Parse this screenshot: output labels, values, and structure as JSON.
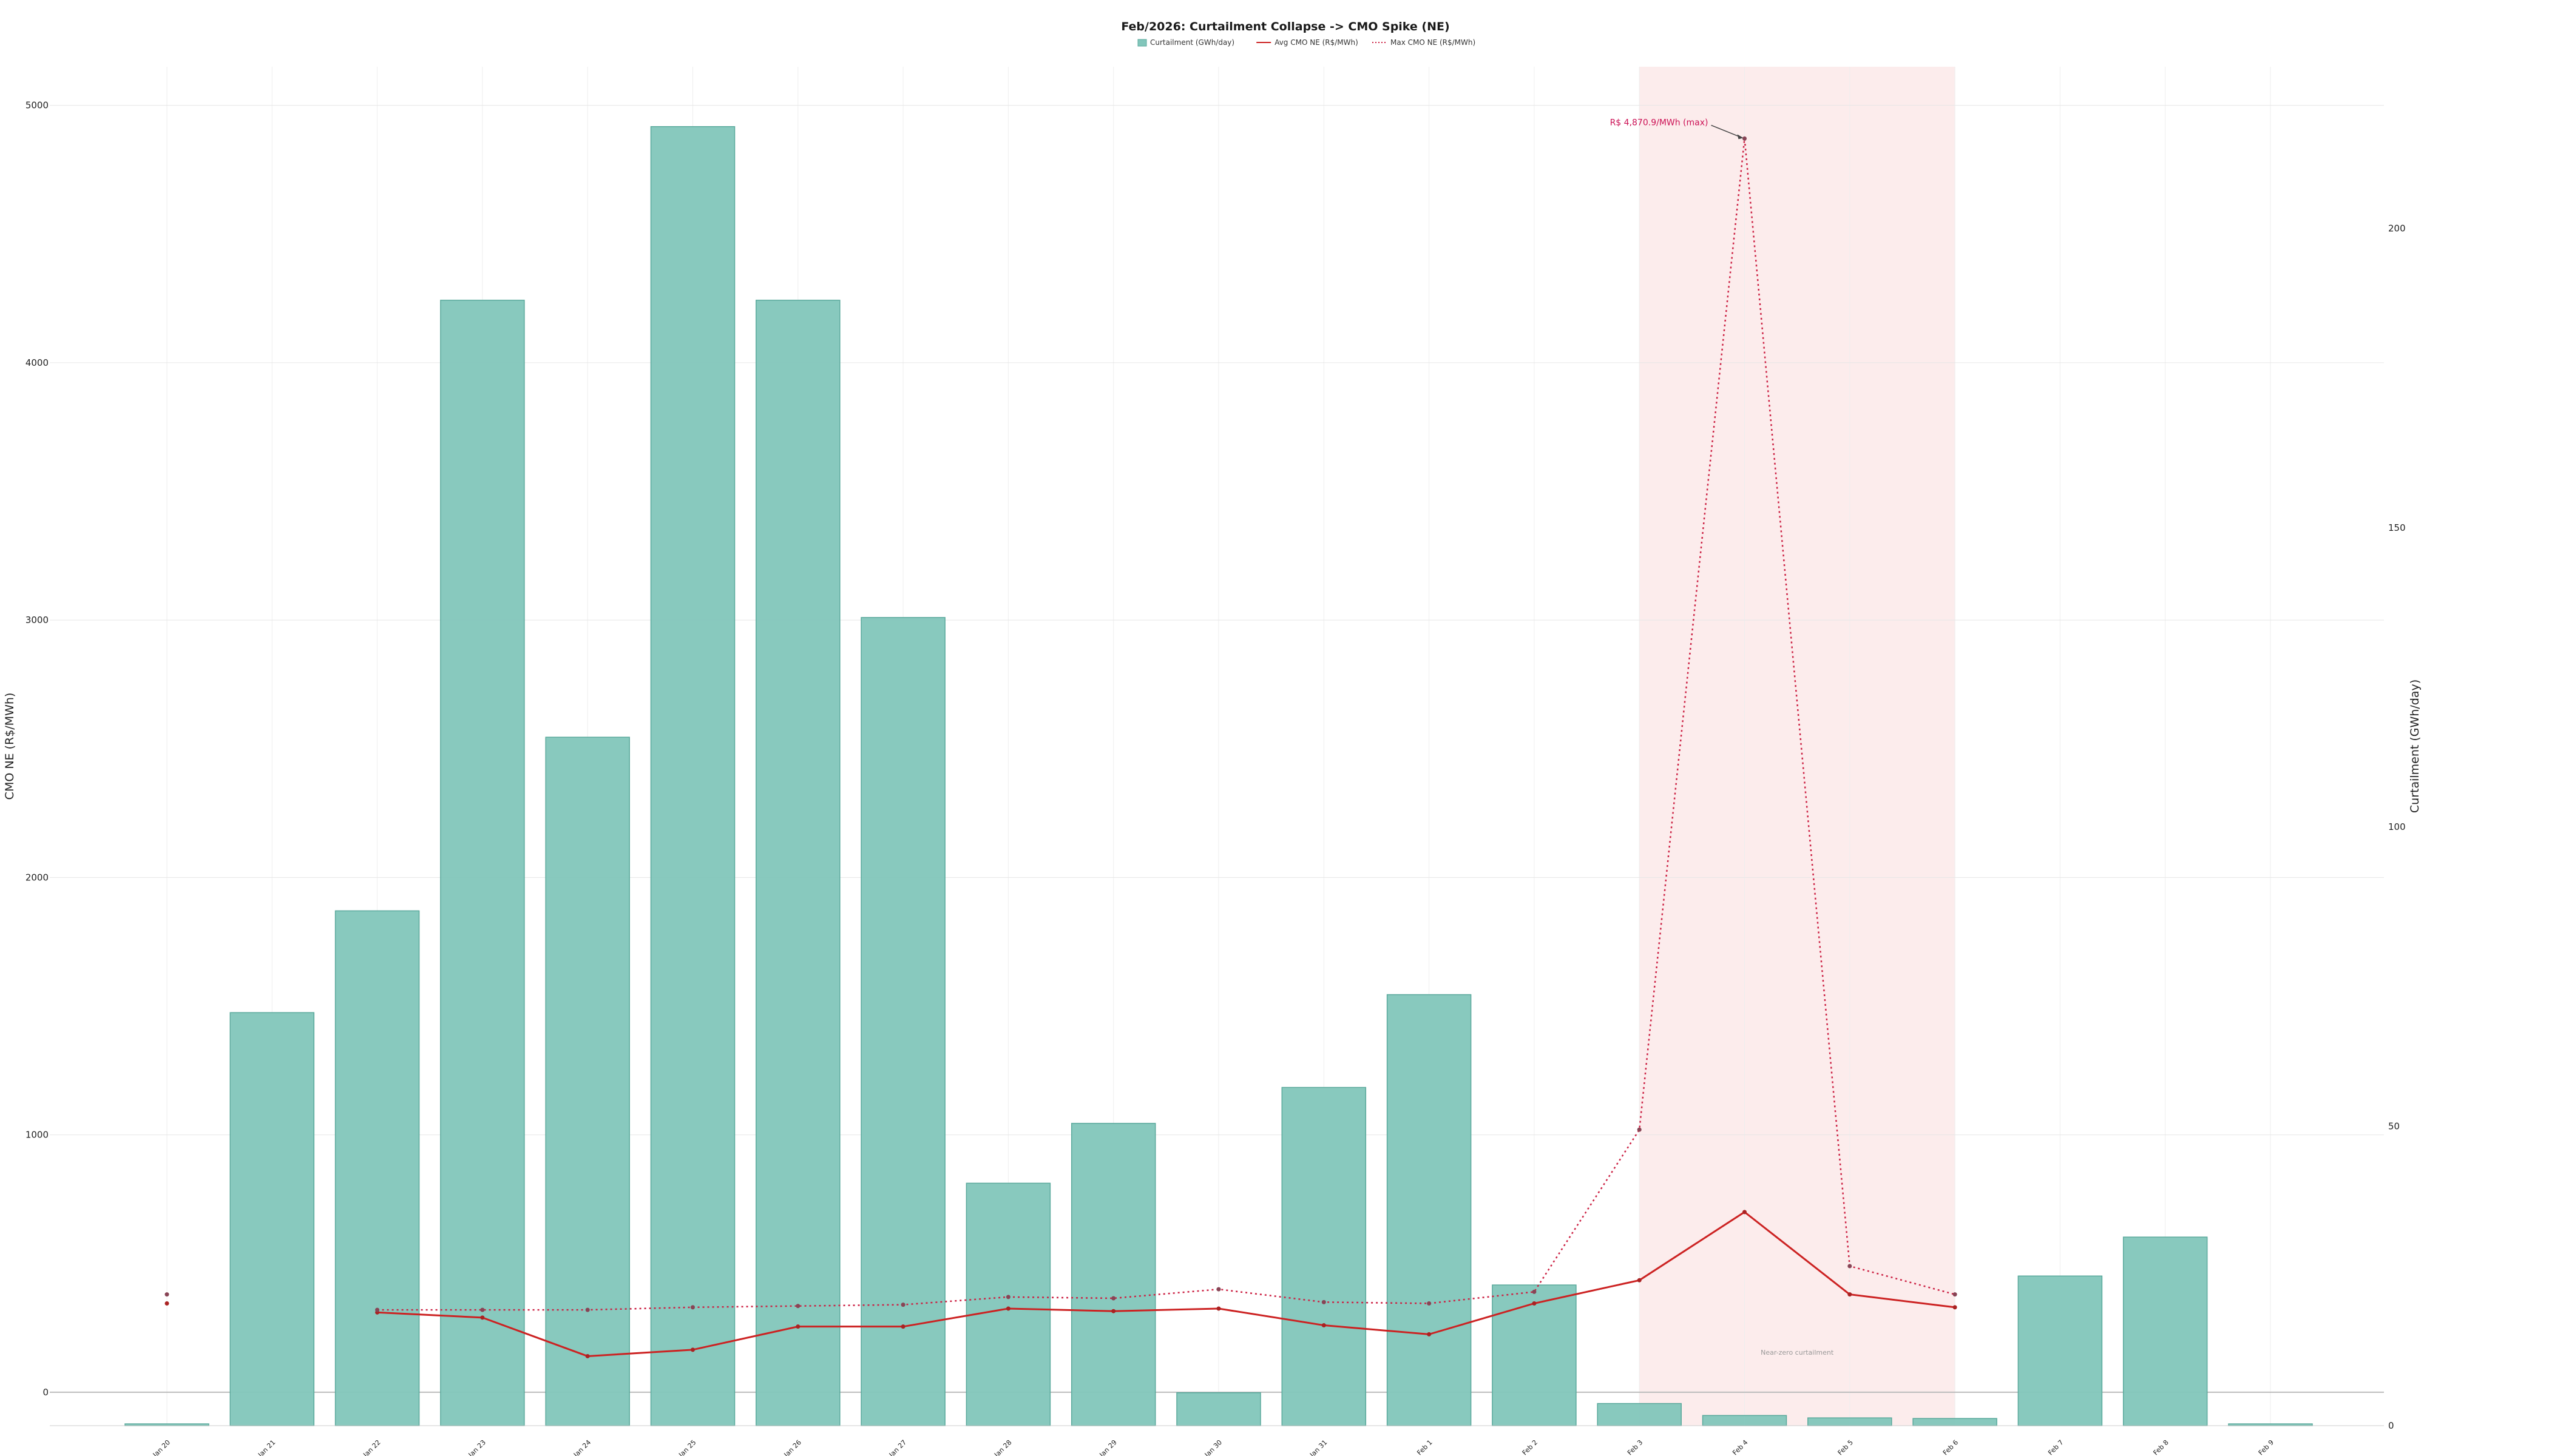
{
  "chart_data": {
    "type": "bar",
    "title": "Feb/2026: Curtailment Collapse -> CMO Spike (NE)",
    "ylabel": "CMO NE (R$/MWh)",
    "y2label": "Curtailment (GWh/day)",
    "categories": [
      "Jan 20",
      "Jan 21",
      "Jan 22",
      "Jan 23",
      "Jan 24",
      "Jan 25",
      "Jan 26",
      "Jan 27",
      "Jan 28",
      "Jan 29",
      "Jan 30",
      "Jan 31",
      "Feb 1",
      "Feb 2",
      "Feb 3",
      "Feb 4",
      "Feb 5",
      "Feb 6",
      "Feb 7",
      "Feb 8",
      "Feb 9"
    ],
    "ylim": [
      -130,
      5150
    ],
    "y2lim": [
      0,
      227
    ],
    "yticks": [
      0,
      1000,
      2000,
      3000,
      4000,
      5000
    ],
    "y2ticks": [
      0,
      50,
      100,
      150,
      200
    ],
    "grid": true,
    "legend_placement": "top-center",
    "legend": [
      "Curtailment (GWh/day)",
      "Avg CMO NE (R$/MWh)",
      "Max CMO NE (R$/MWh)"
    ],
    "series": [
      {
        "name": "Curtailment (GWh/day)",
        "kind": "bar",
        "axis": "right",
        "color": "#82c6bb",
        "values": [
          0.3,
          69,
          86,
          188,
          115,
          217,
          188,
          135,
          40.5,
          50.5,
          5.5,
          56.5,
          72,
          23.5,
          3.7,
          1.7,
          1.3,
          1.2,
          25,
          31.5,
          0.3
        ]
      },
      {
        "name": "Avg CMO NE (R$/MWh)",
        "kind": "line",
        "axis": "left",
        "color": "#cc2222",
        "style": "solid",
        "values": [
          345,
          null,
          310,
          290,
          140,
          165,
          255,
          255,
          325,
          315,
          325,
          260,
          225,
          345,
          435,
          700,
          380,
          330,
          null,
          null,
          null
        ]
      },
      {
        "name": "Max CMO NE (R$/MWh)",
        "kind": "line",
        "axis": "left",
        "color": "#cc2244",
        "style": "dotted",
        "values": [
          380,
          null,
          320,
          320,
          320,
          330,
          335,
          340,
          370,
          365,
          400,
          350,
          345,
          390,
          1020,
          4870.9,
          490,
          380,
          null,
          null,
          null
        ]
      }
    ],
    "highlight": {
      "from": "Feb 3",
      "to": "Feb 6",
      "color": "#fcecec",
      "label": "Near-zero curtailment"
    },
    "annotations": [
      {
        "text": "R$ 4,870.9/MWh (max)",
        "x": "Feb 4",
        "y": 4870.9
      }
    ]
  }
}
